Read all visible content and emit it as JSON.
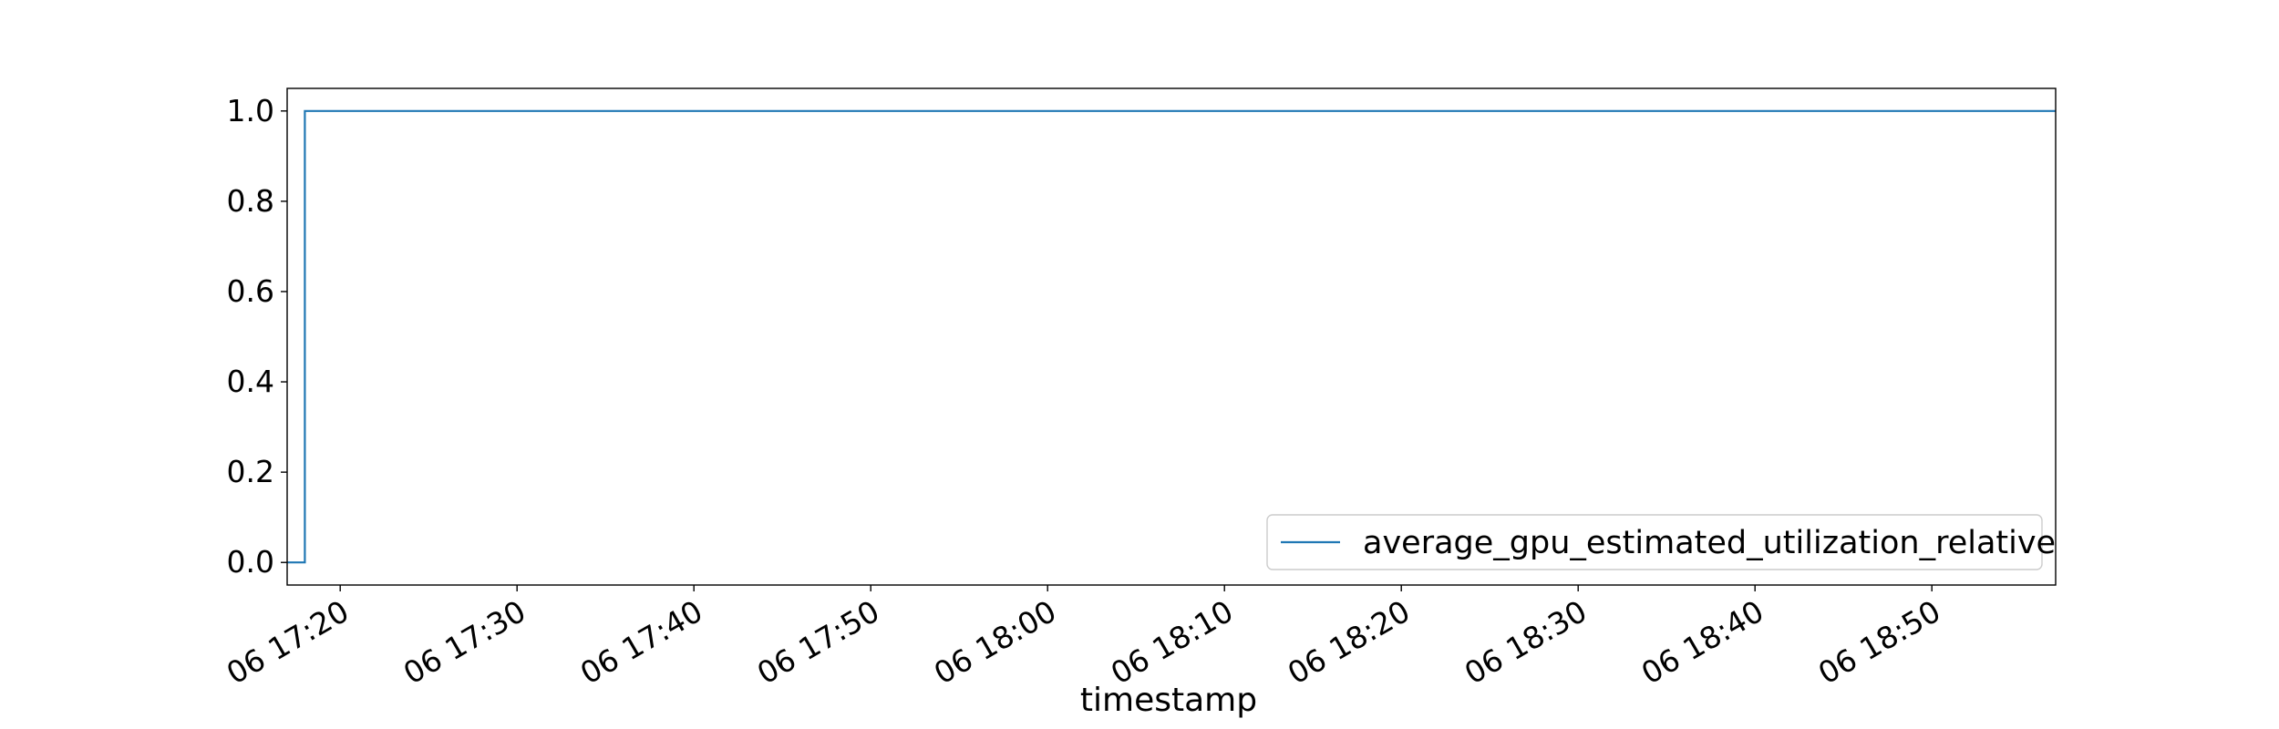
{
  "chart_data": {
    "type": "line",
    "title": "",
    "xlabel": "timestamp",
    "ylabel": "",
    "x_ticks": [
      "06 17:20",
      "06 17:30",
      "06 17:40",
      "06 17:50",
      "06 18:00",
      "06 18:10",
      "06 18:20",
      "06 18:30",
      "06 18:40",
      "06 18:50"
    ],
    "y_ticks": [
      "0.0",
      "0.2",
      "0.4",
      "0.6",
      "0.8",
      "1.0"
    ],
    "xlim": [
      "06 17:17",
      "06 18:57"
    ],
    "ylim": [
      -0.05,
      1.05
    ],
    "grid": false,
    "legend_position": "lower-right",
    "series": [
      {
        "name": "average_gpu_estimated_utilization_relative",
        "color": "#1f77b4",
        "x": [
          "06 17:17",
          "06 17:18",
          "06 17:18",
          "06 18:57"
        ],
        "y": [
          0.0,
          0.0,
          1.0,
          1.0
        ]
      }
    ]
  }
}
